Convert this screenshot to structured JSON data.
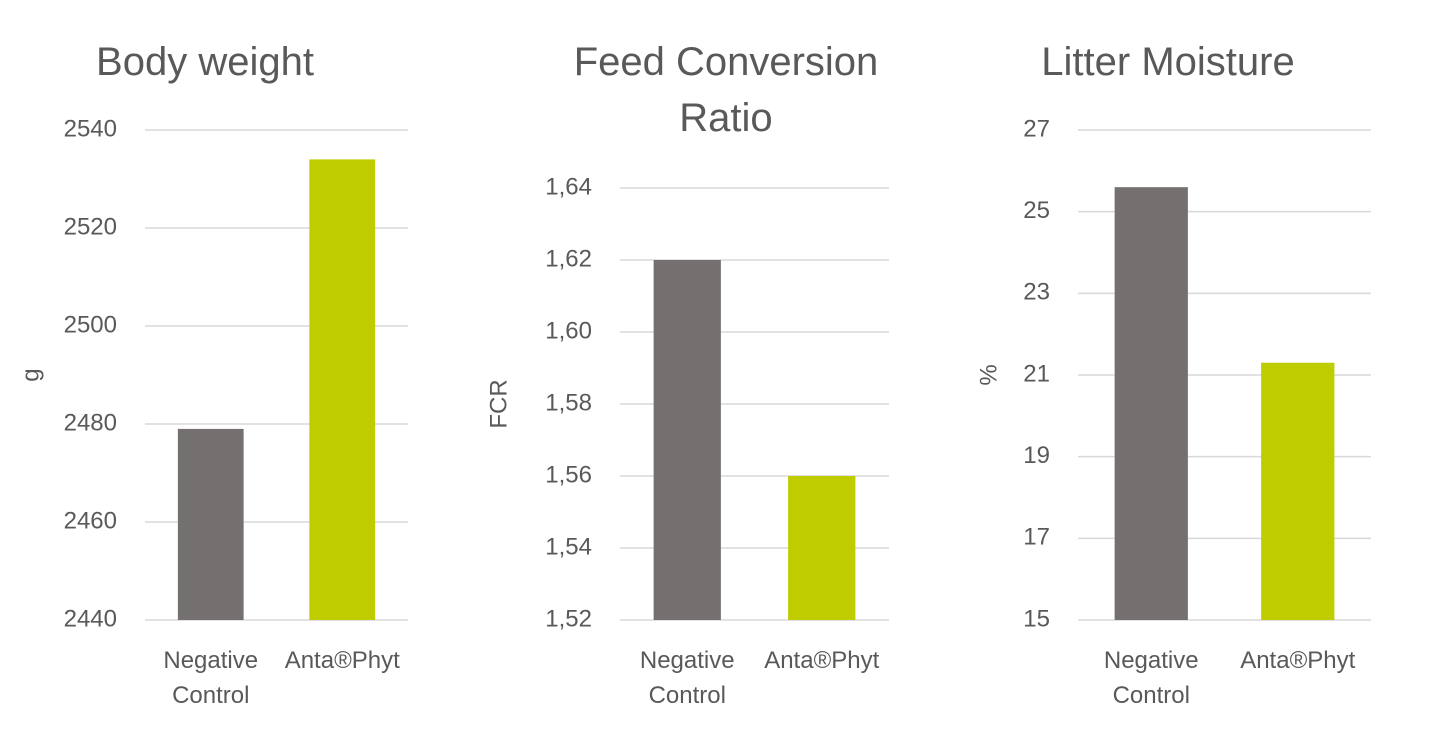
{
  "chart_data": [
    {
      "type": "bar",
      "title": "Body weight",
      "y_label": "g",
      "categories": [
        "Negative Control",
        "Anta®Phyt"
      ],
      "values": [
        2479,
        2534
      ],
      "colors": [
        "#757070",
        "#bfcc00"
      ],
      "ylim": [
        2440,
        2540
      ],
      "yticks": [
        2440,
        2460,
        2480,
        2500,
        2520,
        2540
      ],
      "grid": true
    },
    {
      "type": "bar",
      "title": "Feed Conversion Ratio",
      "y_label": "FCR",
      "categories": [
        "Negative Control",
        "Anta®Phyt"
      ],
      "values": [
        1.62,
        1.56
      ],
      "colors": [
        "#757070",
        "#bfcc00"
      ],
      "ylim": [
        1.52,
        1.64
      ],
      "yticks": [
        {
          "value": 1.52,
          "label": "1,52"
        },
        {
          "value": 1.54,
          "label": "1,54"
        },
        {
          "value": 1.56,
          "label": "1,56"
        },
        {
          "value": 1.58,
          "label": "1,58"
        },
        {
          "value": 1.6,
          "label": "1,60"
        },
        {
          "value": 1.62,
          "label": "1,62"
        },
        {
          "value": 1.64,
          "label": "1,64"
        }
      ],
      "grid": true
    },
    {
      "type": "bar",
      "title": "Litter Moisture",
      "y_label": "%",
      "categories": [
        "Negative Control",
        "Anta®Phyt"
      ],
      "values": [
        25.6,
        21.3
      ],
      "colors": [
        "#757070",
        "#bfcc00"
      ],
      "ylim": [
        15,
        27
      ],
      "yticks": [
        15,
        17,
        19,
        21,
        23,
        25,
        27
      ],
      "grid": true
    }
  ]
}
